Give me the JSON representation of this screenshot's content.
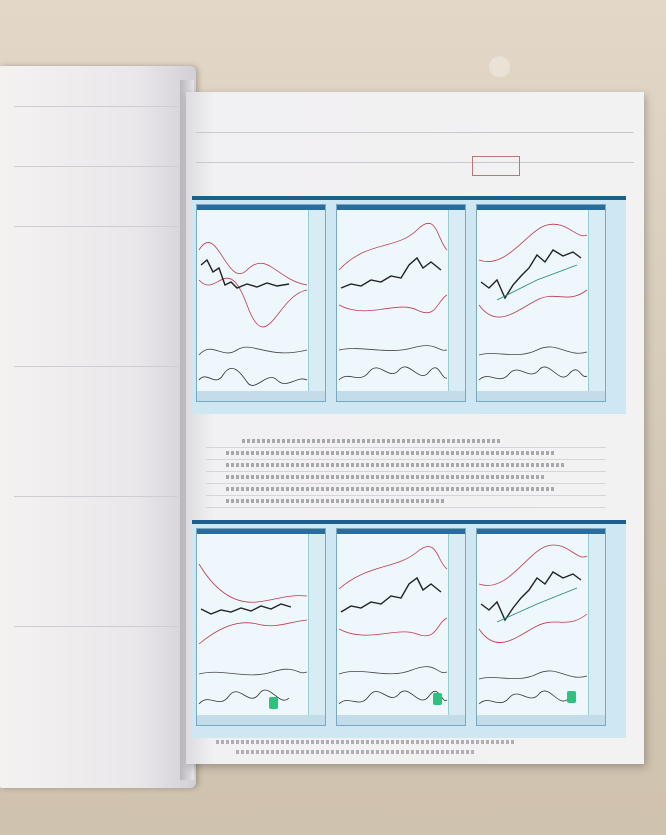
{
  "scene": {
    "description_hidden": "",
    "top_charts": [
      {
        "panel": 1
      },
      {
        "panel": 2
      },
      {
        "panel": 3
      }
    ],
    "bottom_charts": [
      {
        "panel": 1,
        "green_marker": true
      },
      {
        "panel": 2,
        "green_marker": true
      },
      {
        "panel": 3,
        "green_marker": true
      }
    ]
  },
  "colors": {
    "carpet": "#d8cdbd",
    "paper": "#f3f2f3",
    "chart_frame": "#1e5e8c",
    "chart_bg": "#eef7fb",
    "price_line": "#222222",
    "band_line": "#c0394b",
    "highlight": "#2ec27e"
  }
}
